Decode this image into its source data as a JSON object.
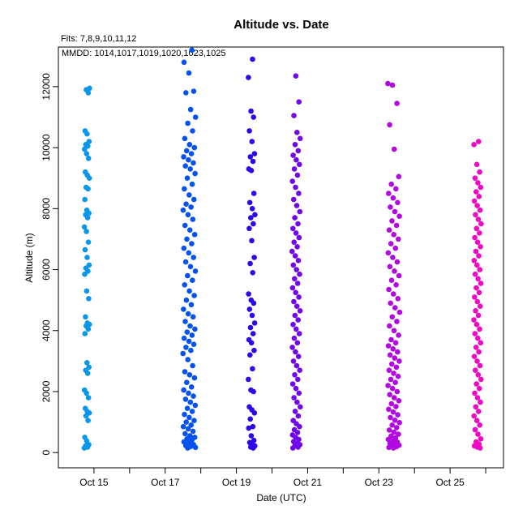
{
  "chart_data": {
    "type": "scatter",
    "title": "Altitude  vs. Date",
    "subtitle": "Fits: 7,8,9,10,11,12",
    "annotation": "MMDD: 1014,1017,1019,1020,1023,1025",
    "xlabel": "Date (UTC)",
    "ylabel": "Altitude (m)",
    "xlim": [
      "2013-10-14T00:00",
      "2013-10-26T12:00"
    ],
    "ylim": [
      -500,
      13300
    ],
    "x_ticks": [
      {
        "date": "2013-10-15",
        "label": "Oct 15"
      },
      {
        "date": "2013-10-17",
        "label": "Oct 17"
      },
      {
        "date": "2013-10-19",
        "label": "Oct 19"
      },
      {
        "date": "2013-10-21",
        "label": "Oct 21"
      },
      {
        "date": "2013-10-23",
        "label": "Oct 23"
      },
      {
        "date": "2013-10-25",
        "label": "Oct 25"
      }
    ],
    "x_minor_ticks": [
      "2013-10-16",
      "2013-10-18",
      "2013-10-20",
      "2013-10-22",
      "2013-10-24",
      "2013-10-26"
    ],
    "y_ticks": [
      0,
      2000,
      4000,
      6000,
      8000,
      10000,
      12000
    ],
    "series": [
      {
        "color": "#0a97ea",
        "x_range": [
          "2013-10-14T17:30",
          "2013-10-14T21:00"
        ],
        "y": [
          150,
          180,
          220,
          260,
          380,
          500,
          1050,
          1200,
          1300,
          1350,
          1450,
          1800,
          1950,
          2050,
          2600,
          2700,
          2800,
          2950,
          3900,
          4050,
          4150,
          4200,
          4250,
          4450,
          5050,
          5300,
          5850,
          5950,
          6050,
          6150,
          6400,
          6650,
          6900,
          7250,
          7400,
          7700,
          7800,
          7850,
          7950,
          8300,
          8650,
          8700,
          9000,
          9100,
          9200,
          9650,
          9800,
          9950,
          10050,
          10100,
          10200,
          10450,
          10550,
          11800,
          11900,
          11950
        ]
      },
      {
        "color": "#0552ec",
        "x_range": [
          "2013-10-17T12:00",
          "2013-10-17T20:30"
        ],
        "y": [
          150,
          170,
          200,
          230,
          260,
          300,
          350,
          400,
          450,
          500,
          550,
          620,
          700,
          780,
          850,
          900,
          1000,
          1050,
          1150,
          1250,
          1350,
          1450,
          1550,
          1650,
          1750,
          1850,
          1950,
          2050,
          2150,
          2300,
          2450,
          2550,
          2650,
          2850,
          3050,
          3250,
          3350,
          3450,
          3550,
          3650,
          3750,
          3850,
          3950,
          4050,
          4150,
          4300,
          4450,
          4550,
          4700,
          4850,
          5000,
          5150,
          5300,
          5500,
          5650,
          5800,
          5950,
          6100,
          6250,
          6400,
          6550,
          6700,
          6850,
          7000,
          7150,
          7300,
          7450,
          7650,
          7800,
          7950,
          8050,
          8150,
          8300,
          8450,
          8650,
          8800,
          9000,
          9150,
          9300,
          9400,
          9500,
          9600,
          9700,
          9800,
          9900,
          10000,
          10100,
          10300,
          10550,
          10800,
          11000,
          11250,
          11800,
          11850,
          12450,
          12800,
          13200
        ]
      },
      {
        "color": "#2d08e8",
        "x_range": [
          "2013-10-19T08:00",
          "2013-10-19T12:30"
        ],
        "y": [
          150,
          180,
          220,
          270,
          330,
          400,
          550,
          800,
          850,
          1100,
          1300,
          1400,
          1500,
          2000,
          2050,
          2400,
          2750,
          3200,
          3350,
          3600,
          3700,
          3900,
          4100,
          4250,
          4500,
          4700,
          4900,
          5000,
          5200,
          5900,
          6200,
          6400,
          6950,
          7350,
          7500,
          7700,
          7800,
          8000,
          8200,
          8500,
          9250,
          9300,
          9550,
          9700,
          9800,
          10200,
          10550,
          11000,
          11200,
          12300,
          12900
        ]
      },
      {
        "color": "#7108ea",
        "x_range": [
          "2013-10-20T13:30",
          "2013-10-20T19:00"
        ],
        "y": [
          150,
          180,
          220,
          260,
          300,
          360,
          430,
          500,
          580,
          660,
          750,
          850,
          950,
          1050,
          1200,
          1350,
          1500,
          1650,
          1800,
          1950,
          2100,
          2250,
          2400,
          2550,
          2700,
          2850,
          3000,
          3150,
          3300,
          3450,
          3600,
          3750,
          3900,
          4050,
          4200,
          4350,
          4500,
          4650,
          4800,
          4950,
          5100,
          5250,
          5400,
          5550,
          5700,
          5850,
          6000,
          6150,
          6300,
          6450,
          6600,
          6750,
          6900,
          7050,
          7200,
          7350,
          7500,
          7700,
          7900,
          8100,
          8300,
          8500,
          8700,
          8900,
          9100,
          9300,
          9450,
          9600,
          9750,
          9900,
          10100,
          10300,
          10500,
          11050,
          11500,
          12350
        ]
      },
      {
        "color": "#b109e0",
        "x_range": [
          "2013-10-23T06:00",
          "2013-10-23T14:00"
        ],
        "y": [
          150,
          170,
          190,
          210,
          240,
          270,
          300,
          340,
          380,
          430,
          480,
          540,
          600,
          670,
          740,
          820,
          900,
          980,
          1060,
          1150,
          1240,
          1330,
          1420,
          1510,
          1600,
          1700,
          1800,
          1900,
          2000,
          2100,
          2200,
          2300,
          2400,
          2500,
          2600,
          2700,
          2800,
          2900,
          3000,
          3100,
          3200,
          3300,
          3400,
          3500,
          3600,
          3700,
          3850,
          4000,
          4150,
          4300,
          4450,
          4600,
          4750,
          4900,
          5050,
          5200,
          5350,
          5500,
          5650,
          5800,
          5950,
          6100,
          6250,
          6400,
          6550,
          6700,
          6850,
          7000,
          7150,
          7300,
          7450,
          7600,
          7750,
          7900,
          8050,
          8200,
          8350,
          8500,
          8650,
          8800,
          9050,
          9950,
          10750,
          11450,
          12050,
          12100
        ]
      },
      {
        "color": "#ee0ac2",
        "x_range": [
          "2013-10-25T16:00",
          "2013-10-25T21:00"
        ],
        "y": [
          150,
          180,
          220,
          280,
          350,
          450,
          600,
          750,
          900,
          1050,
          1200,
          1350,
          1500,
          1650,
          1800,
          1950,
          2100,
          2250,
          2400,
          2550,
          2700,
          2850,
          3000,
          3150,
          3300,
          3450,
          3600,
          3750,
          3900,
          4050,
          4200,
          4350,
          4500,
          4650,
          4800,
          4950,
          5100,
          5250,
          5400,
          5550,
          5700,
          5850,
          6000,
          6150,
          6300,
          6450,
          6600,
          6750,
          6900,
          7050,
          7200,
          7350,
          7500,
          7650,
          7800,
          7950,
          8100,
          8250,
          8400,
          8550,
          8700,
          8850,
          9000,
          9200,
          9450,
          10100,
          10200
        ]
      }
    ]
  }
}
